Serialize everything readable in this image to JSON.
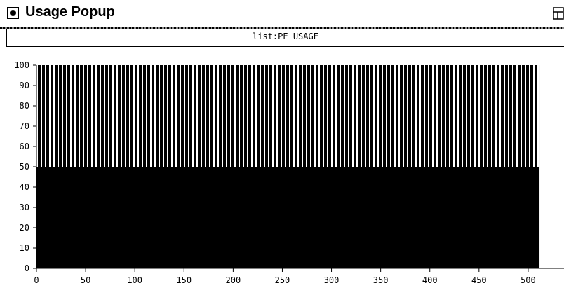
{
  "window": {
    "title": "Usage Popup",
    "close_icon": "close-box-icon",
    "resize_icon": "resize-icon"
  },
  "panel": {
    "title": "list:PE USAGE"
  },
  "colors": {
    "foreground": "#000000",
    "background": "#ffffff"
  },
  "chart_data": {
    "type": "bar",
    "title": "list:PE USAGE",
    "xlabel": "",
    "ylabel": "",
    "xlim": [
      0,
      545
    ],
    "ylim": [
      0,
      100
    ],
    "x_ticks": [
      0,
      50,
      100,
      150,
      200,
      250,
      300,
      350,
      400,
      450,
      500
    ],
    "y_ticks": [
      0,
      10,
      20,
      30,
      40,
      50,
      60,
      70,
      80,
      90,
      100
    ],
    "bar_count": 512,
    "bar_value": 100,
    "series": [
      {
        "values": [
          50
        ],
        "pattern": "solid"
      },
      {
        "values": [
          100
        ],
        "pattern": "striped"
      }
    ],
    "grid": false
  }
}
